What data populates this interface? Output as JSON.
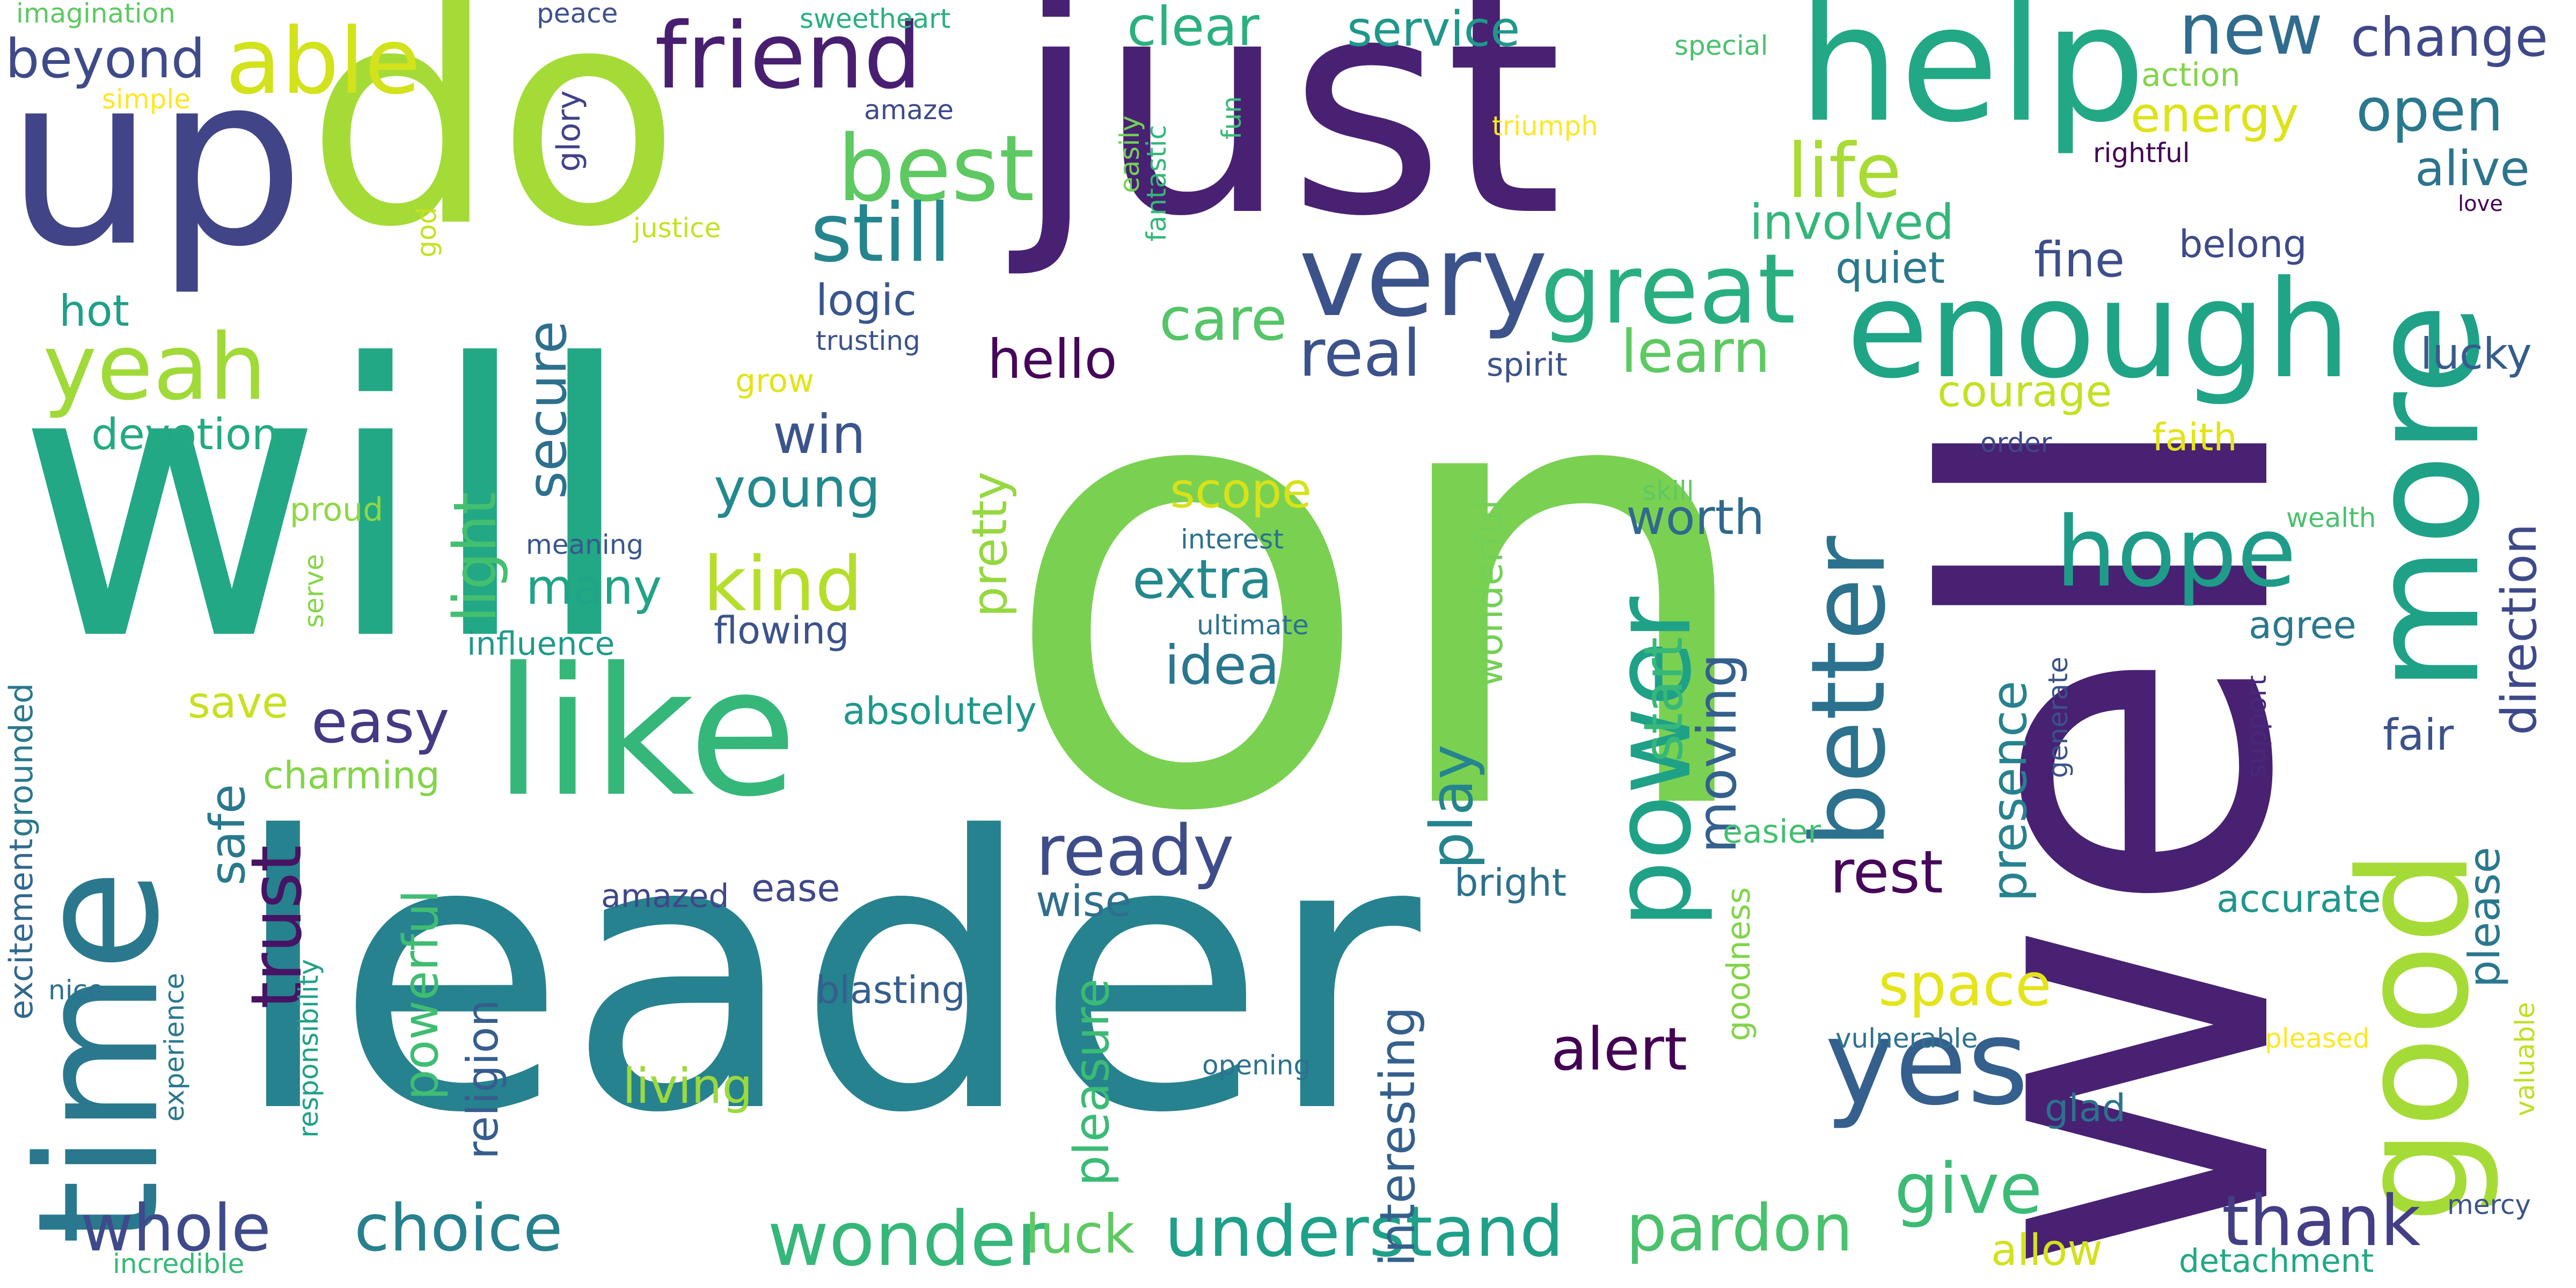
{
  "words": [
    {
      "text": "on",
      "color": "#7ad151"
    },
    {
      "text": "leader",
      "color": "#26828e"
    },
    {
      "text": "will",
      "color": "#22a884"
    },
    {
      "text": "well",
      "color": "#482173"
    },
    {
      "text": "just",
      "color": "#482173"
    },
    {
      "text": "do",
      "color": "#a5db36"
    },
    {
      "text": "up",
      "color": "#414487"
    },
    {
      "text": "time",
      "color": "#2a788e"
    },
    {
      "text": "like",
      "color": "#35b779"
    },
    {
      "text": "help",
      "color": "#22a884"
    },
    {
      "text": "enough",
      "color": "#20a486"
    },
    {
      "text": "more",
      "color": "#1fa187"
    },
    {
      "text": "good",
      "color": "#a5db36"
    },
    {
      "text": "power",
      "color": "#1fa187"
    },
    {
      "text": "better",
      "color": "#2c728e"
    },
    {
      "text": "very",
      "color": "#3b528b"
    },
    {
      "text": "great",
      "color": "#29af7f"
    },
    {
      "text": "yes",
      "color": "#355f8d"
    },
    {
      "text": "friend",
      "color": "#481f70"
    },
    {
      "text": "able",
      "color": "#d2e21b"
    },
    {
      "text": "yeah",
      "color": "#a0da39"
    },
    {
      "text": "best",
      "color": "#5ec962"
    },
    {
      "text": "still",
      "color": "#25858e"
    },
    {
      "text": "hope",
      "color": "#1e9c89"
    },
    {
      "text": "understand",
      "color": "#1fa088"
    },
    {
      "text": "wonder",
      "color": "#35b779"
    },
    {
      "text": "choice",
      "color": "#27808e"
    },
    {
      "text": "whole",
      "color": "#3e4a89"
    },
    {
      "text": "give",
      "color": "#3bbb75"
    },
    {
      "text": "thank",
      "color": "#433e85"
    },
    {
      "text": "pardon",
      "color": "#4ac16d"
    },
    {
      "text": "ready",
      "color": "#3e4c8a"
    },
    {
      "text": "kind",
      "color": "#b5de2b"
    },
    {
      "text": "easy",
      "color": "#443983"
    },
    {
      "text": "life",
      "color": "#a8db34"
    },
    {
      "text": "real",
      "color": "#3b528b"
    },
    {
      "text": "new",
      "color": "#2f6c8e"
    },
    {
      "text": "change",
      "color": "#3f4889"
    },
    {
      "text": "open",
      "color": "#2a788e"
    },
    {
      "text": "care",
      "color": "#54c568"
    },
    {
      "text": "clear",
      "color": "#2ab07f"
    },
    {
      "text": "service",
      "color": "#1f988b"
    },
    {
      "text": "young",
      "color": "#23898e"
    },
    {
      "text": "extra",
      "color": "#24878e"
    },
    {
      "text": "idea",
      "color": "#2a768e"
    },
    {
      "text": "play",
      "color": "#25848e"
    },
    {
      "text": "alert",
      "color": "#440154"
    },
    {
      "text": "rest",
      "color": "#46075a"
    },
    {
      "text": "space",
      "color": "#e5e419"
    },
    {
      "text": "direction",
      "color": "#3e4989"
    },
    {
      "text": "alive",
      "color": "#2c738e"
    },
    {
      "text": "trust",
      "color": "#471365"
    },
    {
      "text": "secure",
      "color": "#2d708e"
    },
    {
      "text": "light",
      "color": "#44bf70"
    },
    {
      "text": "win",
      "color": "#3a548c"
    },
    {
      "text": "hello",
      "color": "#450559"
    },
    {
      "text": "luck",
      "color": "#5ec962"
    },
    {
      "text": "living",
      "color": "#9bd93c"
    },
    {
      "text": "save",
      "color": "#c8e020"
    },
    {
      "text": "hot",
      "color": "#1fa088"
    },
    {
      "text": "devotion",
      "color": "#24aa83"
    },
    {
      "text": "beyond",
      "color": "#3e4a89"
    },
    {
      "text": "many",
      "color": "#20a386"
    },
    {
      "text": "logic",
      "color": "#39568c"
    },
    {
      "text": "scope",
      "color": "#d8e219"
    },
    {
      "text": "learn",
      "color": "#5ec962"
    },
    {
      "text": "worth",
      "color": "#31688e"
    },
    {
      "text": "moving",
      "color": "#34608d"
    },
    {
      "text": "start",
      "color": "#37b878"
    },
    {
      "text": "presence",
      "color": "#26828e"
    },
    {
      "text": "pretty",
      "color": "#95d840"
    },
    {
      "text": "pleasure",
      "color": "#3bbb75"
    },
    {
      "text": "interesting",
      "color": "#35608d"
    },
    {
      "text": "wise",
      "color": "#2e6f8e"
    },
    {
      "text": "ease",
      "color": "#3f4889"
    },
    {
      "text": "energy",
      "color": "#dde318"
    },
    {
      "text": "involved",
      "color": "#33b67a"
    },
    {
      "text": "quiet",
      "color": "#2a788e"
    },
    {
      "text": "fine",
      "color": "#3d4e8a"
    },
    {
      "text": "courage",
      "color": "#c5e021"
    },
    {
      "text": "lucky",
      "color": "#365c8d"
    },
    {
      "text": "belong",
      "color": "#3e4a89"
    },
    {
      "text": "fair",
      "color": "#3b528b"
    },
    {
      "text": "accurate",
      "color": "#1f968b"
    },
    {
      "text": "please",
      "color": "#2a788e"
    },
    {
      "text": "safe",
      "color": "#2a788e"
    },
    {
      "text": "powerful",
      "color": "#40bd72"
    },
    {
      "text": "religion",
      "color": "#365d8d"
    },
    {
      "text": "wonderful",
      "color": "#73d056"
    },
    {
      "text": "charming",
      "color": "#84d44b"
    },
    {
      "text": "absolutely",
      "color": "#1f988b"
    },
    {
      "text": "blasting",
      "color": "#355e8d"
    },
    {
      "text": "flowing",
      "color": "#3b528b"
    },
    {
      "text": "influence",
      "color": "#1f9a8a"
    },
    {
      "text": "meaning",
      "color": "#39568c"
    },
    {
      "text": "proud",
      "color": "#8fd744"
    },
    {
      "text": "serve",
      "color": "#86d549"
    },
    {
      "text": "amazed",
      "color": "#3f4889"
    },
    {
      "text": "bright",
      "color": "#2d708e"
    },
    {
      "text": "easier",
      "color": "#44bf70"
    },
    {
      "text": "goodness",
      "color": "#84d44b"
    },
    {
      "text": "vulnerable",
      "color": "#2c728e"
    },
    {
      "text": "glad",
      "color": "#2c728e"
    },
    {
      "text": "allow",
      "color": "#d2e21b"
    },
    {
      "text": "detachment",
      "color": "#22a884"
    },
    {
      "text": "mercy",
      "color": "#3b528b"
    },
    {
      "text": "pleased",
      "color": "#fde725"
    },
    {
      "text": "valuable",
      "color": "#c2df23"
    },
    {
      "text": "support",
      "color": "#482878"
    },
    {
      "text": "generate",
      "color": "#3b528b"
    },
    {
      "text": "agree",
      "color": "#2a788e"
    },
    {
      "text": "wealth",
      "color": "#4ac16d"
    },
    {
      "text": "faith",
      "color": "#e2e418"
    },
    {
      "text": "order",
      "color": "#3f4889"
    },
    {
      "text": "skill",
      "color": "#5ec962"
    },
    {
      "text": "spirit",
      "color": "#3b528b"
    },
    {
      "text": "interest",
      "color": "#2c728e"
    },
    {
      "text": "ultimate",
      "color": "#2c728e"
    },
    {
      "text": "opening",
      "color": "#2c728e"
    },
    {
      "text": "experience",
      "color": "#2a788e"
    },
    {
      "text": "excitement",
      "color": "#31688e"
    },
    {
      "text": "grounded",
      "color": "#2a788e"
    },
    {
      "text": "responsibility",
      "color": "#1fa088"
    },
    {
      "text": "nice",
      "color": "#2c728e"
    },
    {
      "text": "incredible",
      "color": "#37b878"
    },
    {
      "text": "imagination",
      "color": "#5ec962"
    },
    {
      "text": "simple",
      "color": "#fde725"
    },
    {
      "text": "peace",
      "color": "#3b528b"
    },
    {
      "text": "sweetheart",
      "color": "#2ab07f"
    },
    {
      "text": "glory",
      "color": "#404387"
    },
    {
      "text": "amaze",
      "color": "#3e4a89"
    },
    {
      "text": "fun",
      "color": "#3bbb75"
    },
    {
      "text": "fantastic",
      "color": "#35b779"
    },
    {
      "text": "easily",
      "color": "#73d056"
    },
    {
      "text": "justice",
      "color": "#c8e020"
    },
    {
      "text": "god",
      "color": "#c8e020"
    },
    {
      "text": "trusting",
      "color": "#3b528b"
    },
    {
      "text": "grow",
      "color": "#e2e418"
    },
    {
      "text": "special",
      "color": "#4ac16d"
    },
    {
      "text": "triumph",
      "color": "#fde725"
    },
    {
      "text": "action",
      "color": "#84d44b"
    },
    {
      "text": "rightful",
      "color": "#440154"
    },
    {
      "text": "love",
      "color": "#440154"
    }
  ]
}
